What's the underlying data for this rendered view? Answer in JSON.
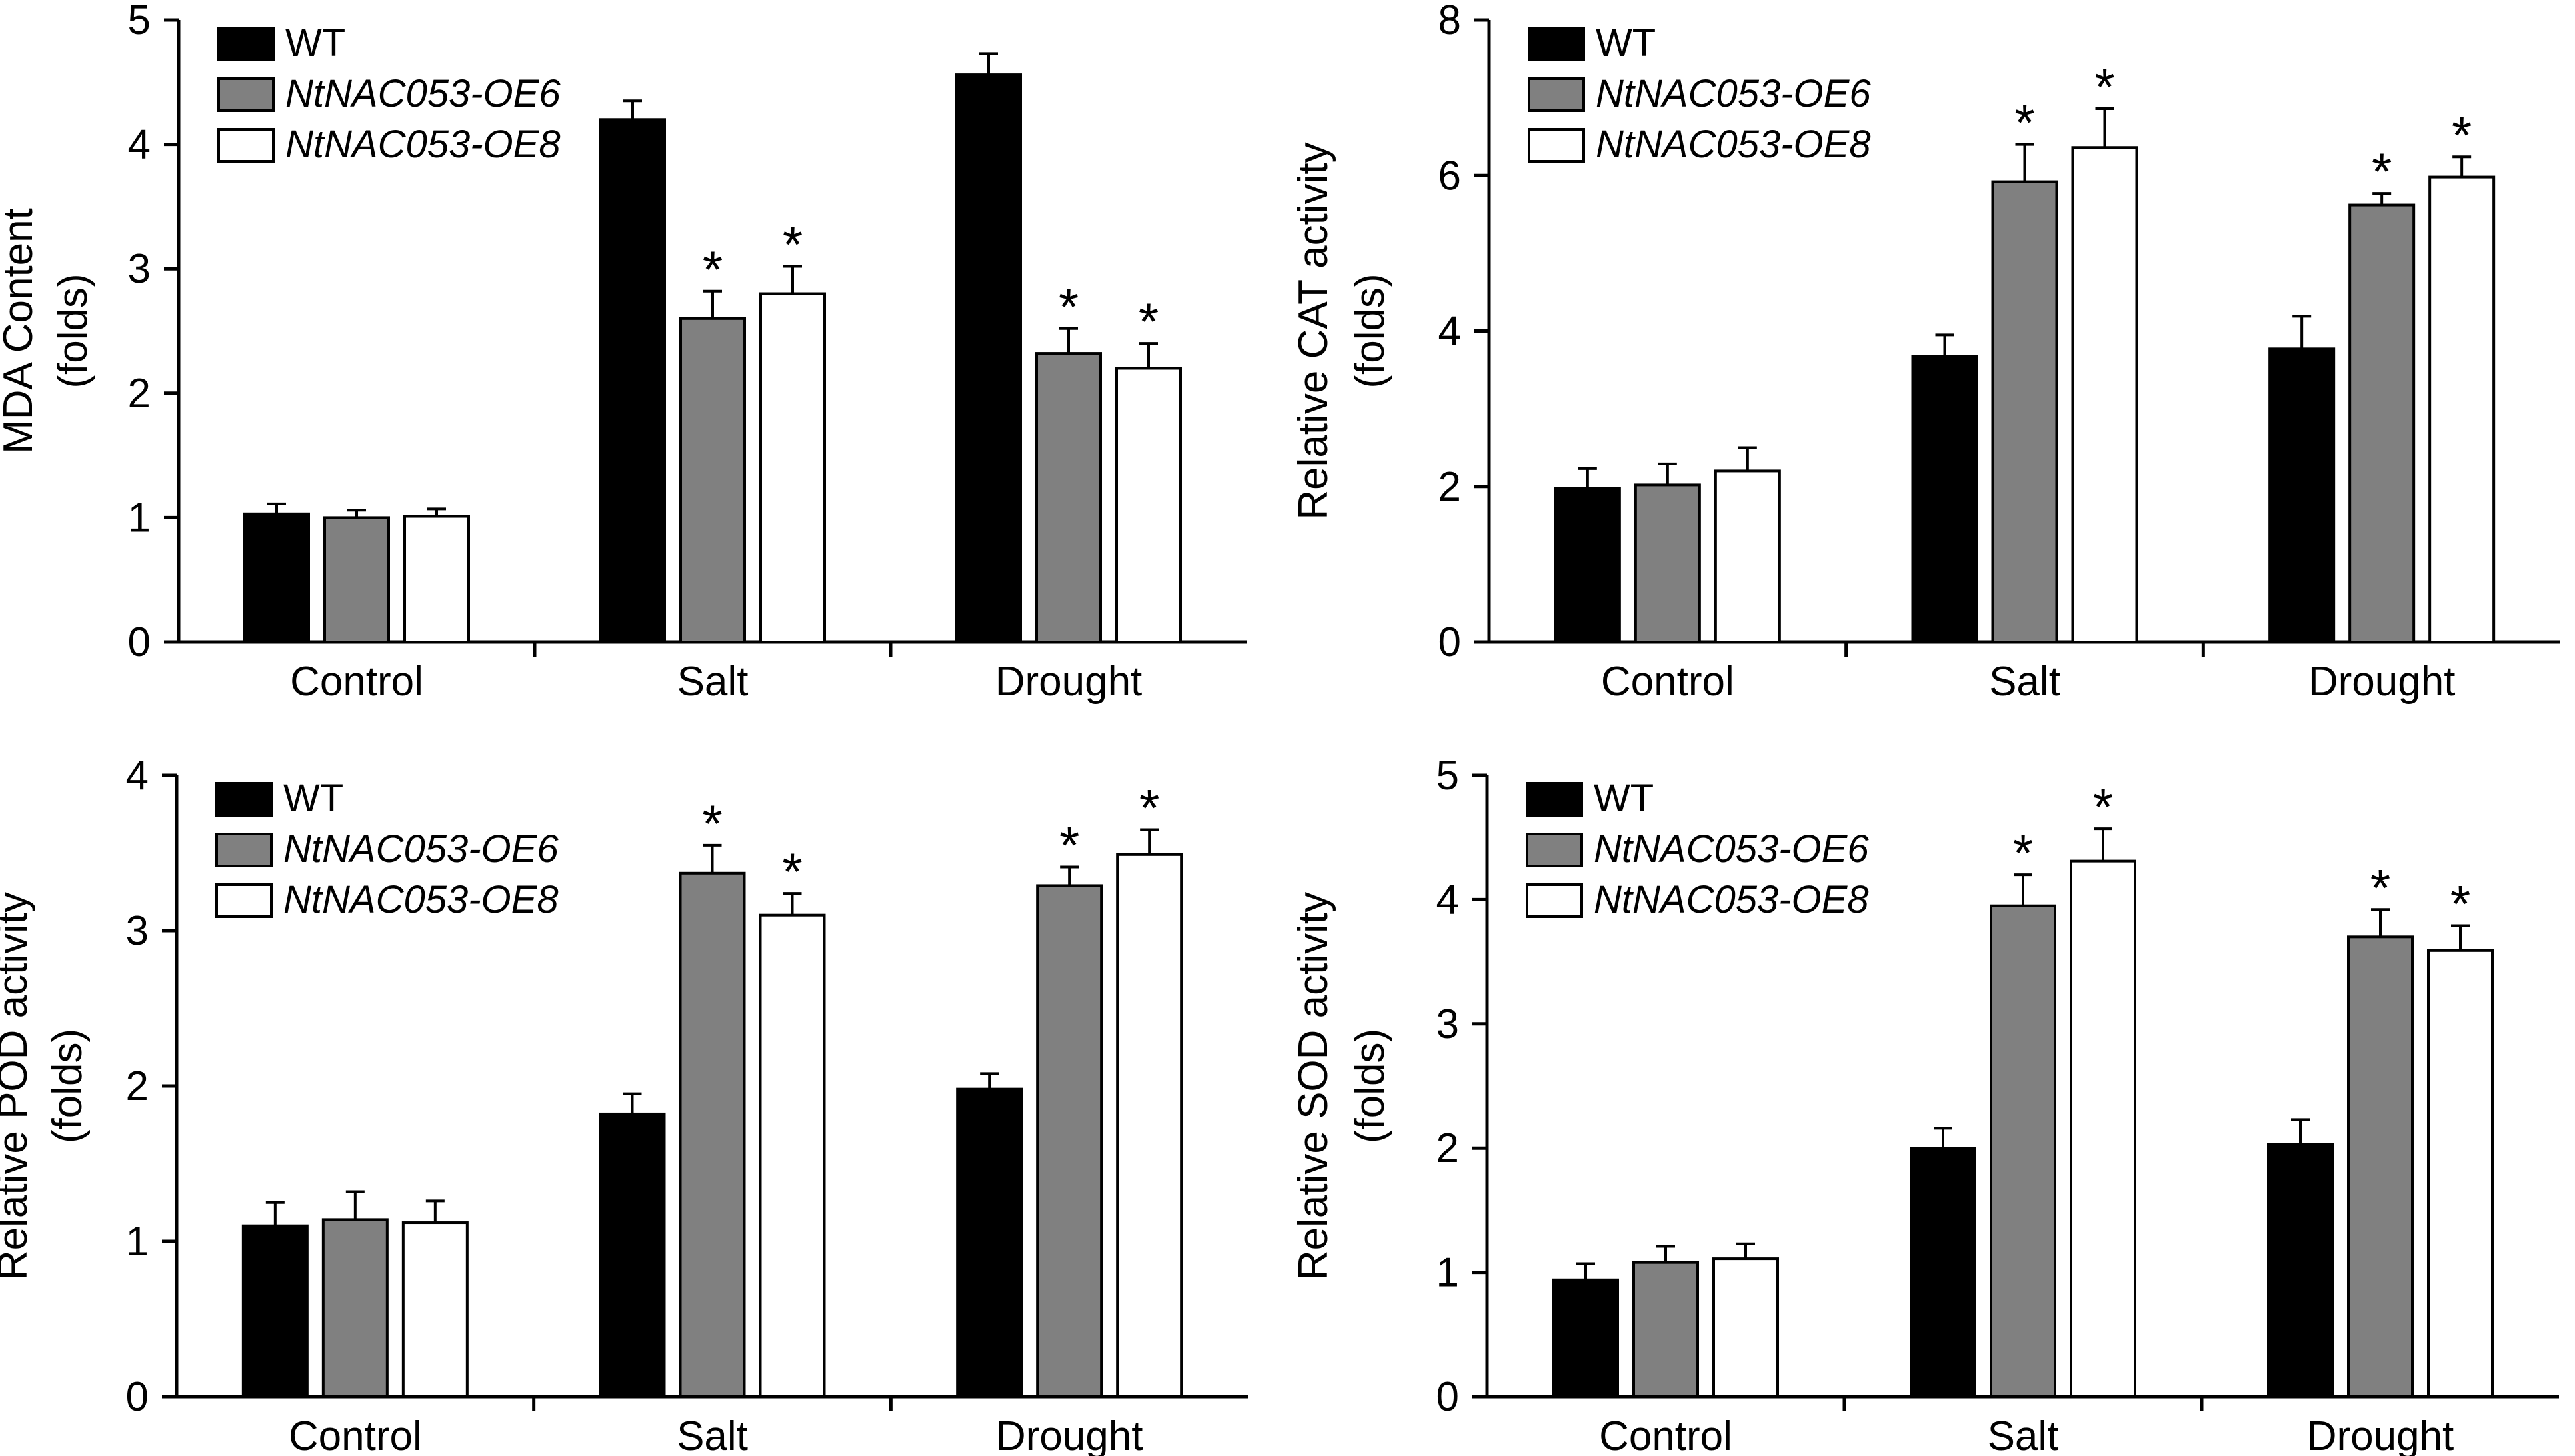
{
  "figure": {
    "series_colors": {
      "WT": "#000000",
      "NtNAC053-OE6": "#808080",
      "NtNAC053-OE8": "#ffffff"
    }
  },
  "chart_data": [
    {
      "type": "bar",
      "id": "mda",
      "title": "",
      "ylabel_lines": [
        "MDA Content",
        "(folds)"
      ],
      "xlabel": "",
      "categories": [
        "Control",
        "Salt",
        "Drought"
      ],
      "ylim": [
        0,
        5
      ],
      "yticks": [
        0,
        1,
        2,
        3,
        4,
        5
      ],
      "legend": [
        "WT",
        "NtNAC053-OE6",
        "NtNAC053-OE8"
      ],
      "series": [
        {
          "name": "WT",
          "values": [
            1.03,
            4.2,
            4.56
          ],
          "errors": [
            0.08,
            0.15,
            0.17
          ],
          "sig": [
            false,
            false,
            false
          ]
        },
        {
          "name": "NtNAC053-OE6",
          "values": [
            1.0,
            2.6,
            2.32
          ],
          "errors": [
            0.06,
            0.22,
            0.2
          ],
          "sig": [
            false,
            true,
            true
          ]
        },
        {
          "name": "NtNAC053-OE8",
          "values": [
            1.01,
            2.8,
            2.2
          ],
          "errors": [
            0.06,
            0.22,
            0.2
          ],
          "sig": [
            false,
            true,
            true
          ]
        }
      ],
      "sig_marker": "*"
    },
    {
      "type": "bar",
      "id": "cat",
      "title": "",
      "ylabel_lines": [
        "Relative CAT activity",
        "(folds)"
      ],
      "xlabel": "",
      "categories": [
        "Control",
        "Salt",
        "Drought"
      ],
      "ylim": [
        0,
        8
      ],
      "yticks": [
        0,
        2,
        4,
        6,
        8
      ],
      "legend": [
        "WT",
        "NtNAC053-OE6",
        "NtNAC053-OE8"
      ],
      "series": [
        {
          "name": "WT",
          "values": [
            1.98,
            3.67,
            3.77
          ],
          "errors": [
            0.25,
            0.28,
            0.42
          ],
          "sig": [
            false,
            false,
            false
          ]
        },
        {
          "name": "NtNAC053-OE6",
          "values": [
            2.02,
            5.92,
            5.62
          ],
          "errors": [
            0.27,
            0.48,
            0.15
          ],
          "sig": [
            false,
            true,
            true
          ]
        },
        {
          "name": "NtNAC053-OE8",
          "values": [
            2.2,
            6.36,
            5.98
          ],
          "errors": [
            0.3,
            0.5,
            0.26
          ],
          "sig": [
            false,
            true,
            true
          ]
        }
      ],
      "sig_marker": "*"
    },
    {
      "type": "bar",
      "id": "pod",
      "title": "",
      "ylabel_lines": [
        "Relative POD activity",
        "(folds)"
      ],
      "xlabel": "",
      "categories": [
        "Control",
        "Salt",
        "Drought"
      ],
      "ylim": [
        0,
        4
      ],
      "yticks": [
        0,
        1,
        2,
        3,
        4
      ],
      "legend": [
        "WT",
        "NtNAC053-OE6",
        "NtNAC053-OE8"
      ],
      "series": [
        {
          "name": "WT",
          "values": [
            1.1,
            1.82,
            1.98
          ],
          "errors": [
            0.15,
            0.13,
            0.1
          ],
          "sig": [
            false,
            false,
            false
          ]
        },
        {
          "name": "NtNAC053-OE6",
          "values": [
            1.14,
            3.37,
            3.29
          ],
          "errors": [
            0.18,
            0.18,
            0.12
          ],
          "sig": [
            false,
            true,
            true
          ]
        },
        {
          "name": "NtNAC053-OE8",
          "values": [
            1.12,
            3.1,
            3.49
          ],
          "errors": [
            0.14,
            0.14,
            0.16
          ],
          "sig": [
            false,
            true,
            true
          ]
        }
      ],
      "sig_marker": "*"
    },
    {
      "type": "bar",
      "id": "sod",
      "title": "",
      "ylabel_lines": [
        "Relative SOD activity",
        "(folds)"
      ],
      "xlabel": "",
      "categories": [
        "Control",
        "Salt",
        "Drought"
      ],
      "ylim": [
        0,
        5
      ],
      "yticks": [
        0,
        1,
        2,
        3,
        4,
        5
      ],
      "legend": [
        "WT",
        "NtNAC053-OE6",
        "NtNAC053-OE8"
      ],
      "series": [
        {
          "name": "WT",
          "values": [
            0.94,
            2.0,
            2.03
          ],
          "errors": [
            0.13,
            0.16,
            0.2
          ],
          "sig": [
            false,
            false,
            false
          ]
        },
        {
          "name": "NtNAC053-OE6",
          "values": [
            1.08,
            3.95,
            3.7
          ],
          "errors": [
            0.13,
            0.25,
            0.22
          ],
          "sig": [
            false,
            true,
            true
          ]
        },
        {
          "name": "NtNAC053-OE8",
          "values": [
            1.11,
            4.31,
            3.59
          ],
          "errors": [
            0.12,
            0.26,
            0.2
          ],
          "sig": [
            false,
            true,
            true
          ]
        }
      ],
      "sig_marker": "*"
    }
  ]
}
